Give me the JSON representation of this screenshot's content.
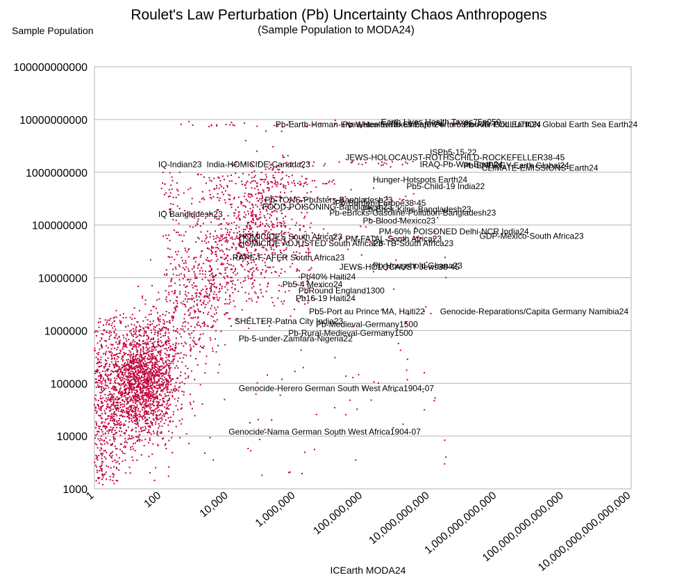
{
  "chart_data": {
    "type": "scatter",
    "title": "Roulet's Law Perturbation (Pb) Uncertainty Chaos Anthropogens",
    "subtitle": "(Sample Population to MODA24)",
    "xlabel": "ICEarth MODA24",
    "ylabel": "Sample Population",
    "x_scale": "log",
    "y_scale": "log",
    "xlim": [
      1,
      1e+16
    ],
    "ylim": [
      1000,
      100000000000
    ],
    "grid": true,
    "legend": "none",
    "marker_color": "#c0003c",
    "x_tick_labels": [
      "1",
      "100",
      "10,000",
      "1,000,000",
      "100,000,000",
      "10,000,000,000",
      "1,000,000,000,000",
      "100,000,000,000,000",
      "10,000,000,000,000,000"
    ],
    "y_tick_labels": [
      "1000",
      "10000",
      "100000",
      "1000000",
      "10000000",
      "100000000",
      "1000000000",
      "10000000000",
      "100000000000"
    ],
    "annotations": [
      {
        "text": "IQ-Indian23",
        "x": 80,
        "y": 1400000000
      },
      {
        "text": "IQ Bangladesh23",
        "x": 80,
        "y": 160000000
      },
      {
        "text": "India-HOMICIDE-Canada23",
        "x": 2200,
        "y": 1400000000
      },
      {
        "text": "Earth Lives Health Taxes75p050",
        "x": 350000000.0,
        "y": 9000000000
      },
      {
        "text": "Pb-Earth-Human-Lives-Health-Taxes Earth24",
        "x": 250000.0,
        "y": 8000000000
      },
      {
        "text": "Pb-Water-Earth-Climate-Perturbation Air Grid Earth24",
        "x": 25000000.0,
        "y": 8000000000
      },
      {
        "text": "Pb-AIR-POLLUTION Global Earth Sea Earth24",
        "x": 100000000000.0,
        "y": 8000000000
      },
      {
        "text": "ISPb5-15-22",
        "x": 10000000000.0,
        "y": 2400000000
      },
      {
        "text": "JEWS-HOLOCAUST-ROTHSCHILD-ROCKEFELLER38-45",
        "x": 30000000.0,
        "y": 1900000000
      },
      {
        "text": "IRAQ-Pb-War-Earth24",
        "x": 5000000000.0,
        "y": 1400000000
      },
      {
        "text": "Pb-ENERGY-Earth Global24",
        "x": 100000000000.0,
        "y": 1350000000
      },
      {
        "text": "CLIMATE-EMISSIONS-Earth24",
        "x": 350000000000.0,
        "y": 1200000000
      },
      {
        "text": "Hunger-Hotspots Earth24",
        "x": 200000000.0,
        "y": 720000000
      },
      {
        "text": "Pb5-Child-19 India22",
        "x": 2000000000.0,
        "y": 540000000
      },
      {
        "text": "Pb-TONS-Pbusters-Bangladesh23",
        "x": 120000.0,
        "y": 300000000
      },
      {
        "text": "Pb-Burden-Europe38-45",
        "x": 15000000.0,
        "y": 260000000
      },
      {
        "text": "FOOD-POISONING-Bangladesh23",
        "x": 100000.0,
        "y": 220000000
      },
      {
        "text": "Pb-Brick-Kilns-Bangladesh23",
        "x": 100000000.0,
        "y": 200000000
      },
      {
        "text": "Pb-eBricks-Gasoline-Pollution-Bangladesh23",
        "x": 10000000.0,
        "y": 170000000
      },
      {
        "text": "Pb-Blood-Mexico23",
        "x": 100000000.0,
        "y": 120000000
      },
      {
        "text": "PM-60% POISONED Delhi-NCR India24",
        "x": 300000000.0,
        "y": 75000000
      },
      {
        "text": "GDP-Mexico-South Africa23",
        "x": 300000000000.0,
        "y": 62000000
      },
      {
        "text": "HOMICIDES South Africa23",
        "x": 20000.0,
        "y": 60000000
      },
      {
        "text": "PM-FATAL-South Africa23",
        "x": 30000000.0,
        "y": 55000000
      },
      {
        "text": "HOMICIDE ADJUSTED South Africa23",
        "x": 20000.0,
        "y": 45000000
      },
      {
        "text": "Pb-TB-South Africa23",
        "x": 200000000.0,
        "y": 45000000
      },
      {
        "text": "RAPE-F-AFER South Africa23",
        "x": 13000.0,
        "y": 24000000
      },
      {
        "text": "JEWS-HOLOCAUST Jews38-45",
        "x": 20000000.0,
        "y": 16000000
      },
      {
        "text": "Pb-Household Ghana23",
        "x": 200000000.0,
        "y": 17000000
      },
      {
        "text": "Pb40% Haiti24",
        "x": 1400000.0,
        "y": 10500000
      },
      {
        "text": "Pb5-4 Mexico24",
        "x": 400000.0,
        "y": 7500000
      },
      {
        "text": "PbRound England1300",
        "x": 1200000.0,
        "y": 5700000
      },
      {
        "text": "Pb16-19 Haiti24",
        "x": 1000000.0,
        "y": 4100000
      },
      {
        "text": "Pb5-Port au Prince MA, Haiti22",
        "x": 2500000.0,
        "y": 2300000
      },
      {
        "text": "Genocide-Reparations/Capita Germany Namibia24",
        "x": 20000000000.0,
        "y": 2300000
      },
      {
        "text": "SHELTER-Patna City India23",
        "x": 15000.0,
        "y": 1500000
      },
      {
        "text": "Pb-Medieval-Germany1500",
        "x": 4000000.0,
        "y": 1300000
      },
      {
        "text": "Pb-Rural-Medieval-Germany1500",
        "x": 600000.0,
        "y": 900000
      },
      {
        "text": "Pb-5-under-Zamfara-Nigeria22",
        "x": 20000.0,
        "y": 700000
      },
      {
        "text": "Genocide-Herero German South West Africa1904-07",
        "x": 20000.0,
        "y": 80000
      },
      {
        "text": "Genocide-Nama German South West Africa1904-07",
        "x": 10000.0,
        "y": 12000
      }
    ]
  }
}
